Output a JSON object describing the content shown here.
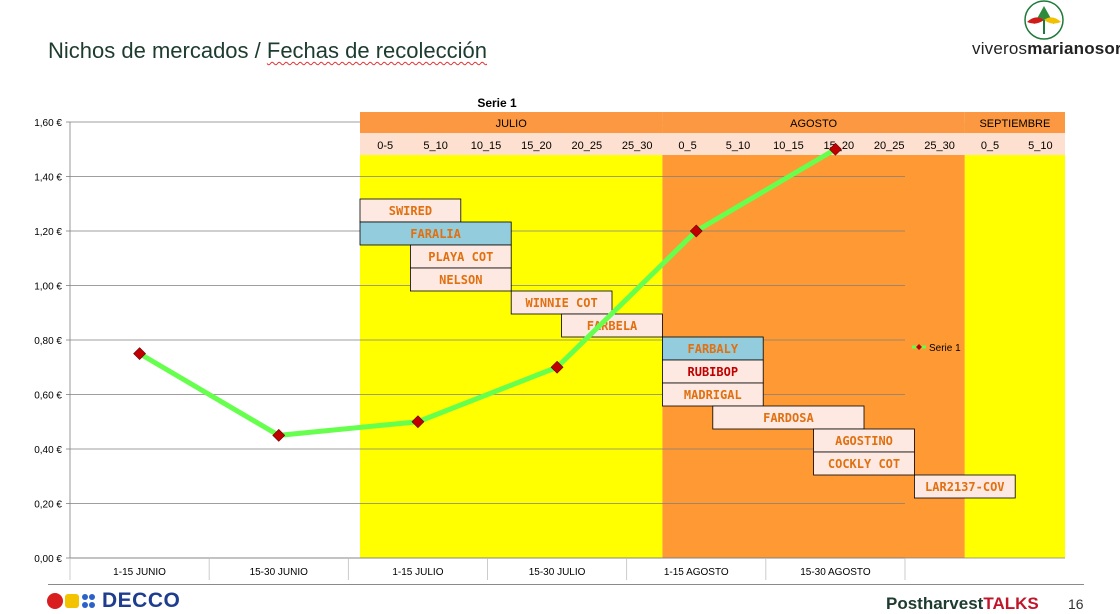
{
  "slide": {
    "title_part1": "Nichos de mercados / ",
    "title_part2": "Fechas de recolección",
    "logo_text_regular": "viveros",
    "logo_text_bold": "marianosoria",
    "footer_brand": "DECCO",
    "footer_talks_1": "Postharvest",
    "footer_talks_2": "TALKS",
    "page_number": "16"
  },
  "colors": {
    "yellow": "#ffff00",
    "orange": "#ff9933",
    "header_orange": "#fb9841",
    "header_peach": "#fde0d0",
    "line_green": "#66ff4d",
    "marker_red": "#c00000",
    "label_orange": "#e07010",
    "label_blue_bg": "#93cddd",
    "label_bg": "#fde9e1"
  },
  "chart_data": {
    "type": "line",
    "title": "Serie 1",
    "categories": [
      "1-15 JUNIO",
      "15-30 JUNIO",
      "1-15 JULIO",
      "15-30 JULIO",
      "1-15 AGOSTO",
      "15-30 AGOSTO"
    ],
    "series": [
      {
        "name": "Serie 1",
        "values": [
          0.75,
          0.45,
          0.5,
          0.7,
          1.2,
          1.5
        ]
      }
    ],
    "y_ticks": [
      "0,00 €",
      "0,20 €",
      "0,40 €",
      "0,60 €",
      "0,80 €",
      "1,00 €",
      "1,20 €",
      "1,40 €",
      "1,60 €"
    ],
    "ylim": [
      0,
      1.6
    ],
    "grid": true,
    "legend": "right",
    "months": [
      "JULIO",
      "AGOSTO",
      "SEPTIEMBRE"
    ],
    "day_ranges": [
      "0-5",
      "5_10",
      "10_15",
      "15_20",
      "20_25",
      "25_30",
      "0_5",
      "5_10",
      "10_15",
      "15_20",
      "20_25",
      "25_30",
      "0_5",
      "5_10"
    ],
    "varieties": [
      {
        "name": "SWIRED",
        "start": 0,
        "end": 2,
        "row": 0,
        "style": "peach"
      },
      {
        "name": "FARALIA",
        "start": 0,
        "end": 3,
        "row": 1,
        "style": "blue"
      },
      {
        "name": "PLAYA COT",
        "start": 1,
        "end": 3,
        "row": 2,
        "style": "peach"
      },
      {
        "name": "NELSON",
        "start": 1,
        "end": 3,
        "row": 3,
        "style": "peach"
      },
      {
        "name": "WINNIE COT",
        "start": 3,
        "end": 5,
        "row": 4,
        "style": "peach"
      },
      {
        "name": "FARBELA",
        "start": 4,
        "end": 6,
        "row": 5,
        "style": "peach"
      },
      {
        "name": "FARBALY",
        "start": 6,
        "end": 8,
        "row": 6,
        "style": "blue"
      },
      {
        "name": "RUBIBOP",
        "start": 6,
        "end": 8,
        "row": 7,
        "style": "peach_red"
      },
      {
        "name": "MADRIGAL",
        "start": 6,
        "end": 8,
        "row": 8,
        "style": "peach"
      },
      {
        "name": "FARDOSA",
        "start": 7,
        "end": 10,
        "row": 9,
        "style": "peach"
      },
      {
        "name": "AGOSTINO",
        "start": 9,
        "end": 11,
        "row": 10,
        "style": "peach"
      },
      {
        "name": "COCKLY COT",
        "start": 9,
        "end": 11,
        "row": 11,
        "style": "peach"
      },
      {
        "name": "LAR2137-COV",
        "start": 11,
        "end": 13,
        "row": 12,
        "style": "peach"
      }
    ]
  }
}
